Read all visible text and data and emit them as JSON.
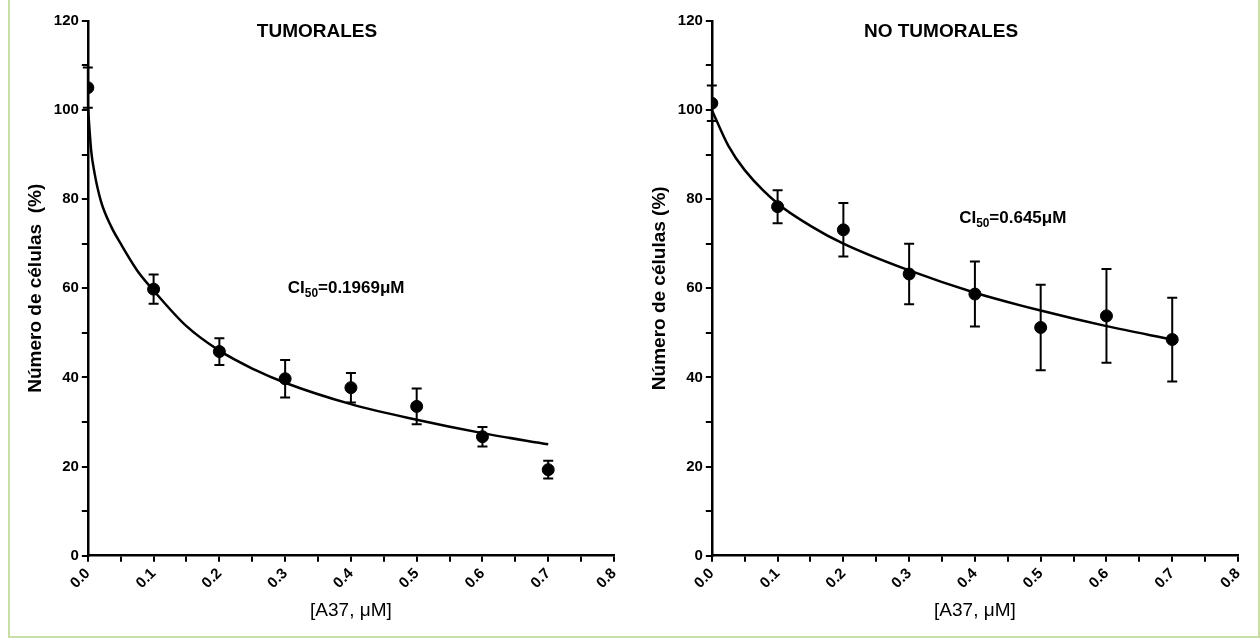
{
  "chart_data": [
    {
      "type": "scatter",
      "title": "TUMORALES",
      "xlabel": "[A37, μM]",
      "ylabel": "Número de células  (%)",
      "xlim": [
        0,
        0.8
      ],
      "xticks": [
        {
          "value": 0,
          "label": "0.0"
        },
        {
          "value": 0.05,
          "label": null
        },
        {
          "value": 0.1,
          "label": "0.1"
        },
        {
          "value": 0.15,
          "label": null
        },
        {
          "value": 0.2,
          "label": "0.2"
        },
        {
          "value": 0.25,
          "label": null
        },
        {
          "value": 0.3,
          "label": "0.3"
        },
        {
          "value": 0.35,
          "label": null
        },
        {
          "value": 0.4,
          "label": "0.4"
        },
        {
          "value": 0.45,
          "label": null
        },
        {
          "value": 0.5,
          "label": "0.5"
        },
        {
          "value": 0.55,
          "label": null
        },
        {
          "value": 0.6,
          "label": "0.6"
        },
        {
          "value": 0.65,
          "label": null
        },
        {
          "value": 0.7,
          "label": "0.7"
        },
        {
          "value": 0.75,
          "label": null
        },
        {
          "value": 0.8,
          "label": "0.8"
        }
      ],
      "ylim": [
        0,
        120
      ],
      "yticks": [
        0,
        {
          "value": 10,
          "label": null
        },
        20,
        {
          "value": 30,
          "label": null
        },
        40,
        {
          "value": 50,
          "label": null
        },
        60,
        {
          "value": 70,
          "label": null
        },
        80,
        {
          "value": 90,
          "label": null
        },
        100,
        {
          "value": 110,
          "label": null
        },
        120
      ],
      "legend": false,
      "annotations": [
        "CI$_{50}$=0.1969μM"
      ],
      "series": [
        {
          "color": "#000000",
          "marker": "circle",
          "x": [
            0,
            0.1,
            0.2,
            0.3,
            0.4,
            0.5,
            0.6,
            0.7
          ],
          "values": [
            105,
            59.8,
            45.8,
            39.7,
            37.7,
            33.5,
            26.7,
            19.3
          ],
          "errors": [
            4.5,
            3.3,
            3,
            4.2,
            3.3,
            4,
            2.2,
            2
          ]
        },
        {
          "type": "line",
          "color": "#000000",
          "marker": "none",
          "x": [
            0,
            0.005,
            0.01,
            0.02,
            0.035,
            0.05,
            0.075,
            0.1,
            0.15,
            0.2,
            0.25,
            0.3,
            0.4,
            0.5,
            0.6,
            0.7
          ],
          "values": [
            101,
            91,
            86,
            79.5,
            74,
            70,
            64,
            59.5,
            51.5,
            46,
            42,
            38.8,
            34,
            30.5,
            27.5,
            25
          ]
        }
      ]
    },
    {
      "type": "scatter",
      "title": "NO TUMORALES",
      "xlabel": "[A37, μM]",
      "ylabel": "Número de células (%)",
      "xlim": [
        0,
        0.8
      ],
      "xticks": [
        {
          "value": 0,
          "label": "0.0"
        },
        {
          "value": 0.05,
          "label": null
        },
        {
          "value": 0.1,
          "label": "0.1"
        },
        {
          "value": 0.15,
          "label": null
        },
        {
          "value": 0.2,
          "label": "0.2"
        },
        {
          "value": 0.25,
          "label": null
        },
        {
          "value": 0.3,
          "label": "0.3"
        },
        {
          "value": 0.35,
          "label": null
        },
        {
          "value": 0.4,
          "label": "0.4"
        },
        {
          "value": 0.45,
          "label": null
        },
        {
          "value": 0.5,
          "label": "0.5"
        },
        {
          "value": 0.55,
          "label": null
        },
        {
          "value": 0.6,
          "label": "0.6"
        },
        {
          "value": 0.65,
          "label": null
        },
        {
          "value": 0.7,
          "label": "0.7"
        },
        {
          "value": 0.75,
          "label": null
        },
        {
          "value": 0.8,
          "label": "0.8"
        }
      ],
      "ylim": [
        0,
        120
      ],
      "yticks": [
        0,
        {
          "value": 10,
          "label": null
        },
        20,
        {
          "value": 30,
          "label": null
        },
        40,
        {
          "value": 50,
          "label": null
        },
        60,
        {
          "value": 70,
          "label": null
        },
        80,
        {
          "value": 90,
          "label": null
        },
        100,
        {
          "value": 110,
          "label": null
        },
        120
      ],
      "legend": false,
      "annotations": [
        "CI$_{50}$=0.645μM"
      ],
      "series": [
        {
          "color": "#000000",
          "marker": "circle",
          "x": [
            0,
            0.1,
            0.2,
            0.3,
            0.4,
            0.5,
            0.6,
            0.7
          ],
          "values": [
            101.5,
            78.3,
            73.1,
            63.2,
            58.7,
            51.2,
            53.8,
            48.5
          ],
          "errors": [
            4,
            3.7,
            6,
            6.8,
            7.3,
            9.6,
            10.5,
            9.4
          ]
        },
        {
          "type": "line",
          "color": "#000000",
          "marker": "none",
          "x": [
            0,
            0.025,
            0.05,
            0.1,
            0.15,
            0.2,
            0.3,
            0.4,
            0.5,
            0.6,
            0.7
          ],
          "values": [
            100,
            92,
            86.5,
            79,
            74,
            70,
            64,
            59,
            55,
            51.5,
            48.5
          ]
        }
      ]
    }
  ]
}
